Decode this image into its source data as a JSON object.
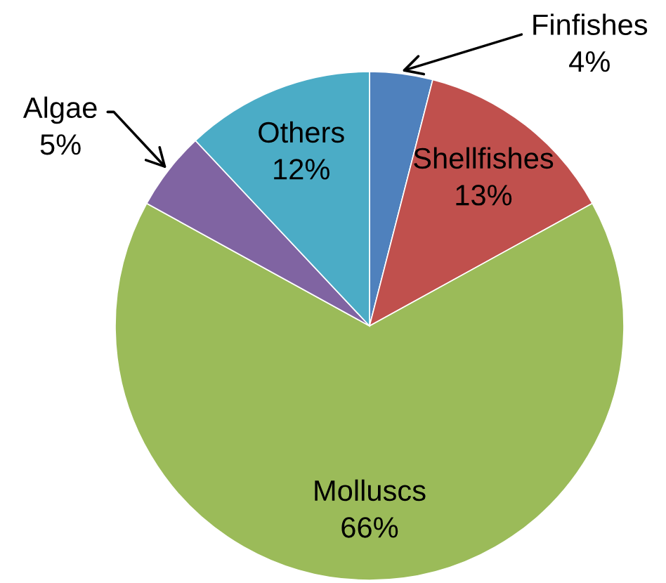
{
  "chart_data": {
    "type": "pie",
    "categories": [
      "Finfishes",
      "Shellfishes",
      "Molluscs",
      "Algae",
      "Others"
    ],
    "values": [
      4,
      13,
      66,
      5,
      12
    ],
    "value_labels": [
      "4%",
      "13%",
      "66%",
      "5%",
      "12%"
    ],
    "colors": [
      "#4f81bd",
      "#c0504d",
      "#9bbb59",
      "#8064a2",
      "#4bacc6"
    ]
  }
}
